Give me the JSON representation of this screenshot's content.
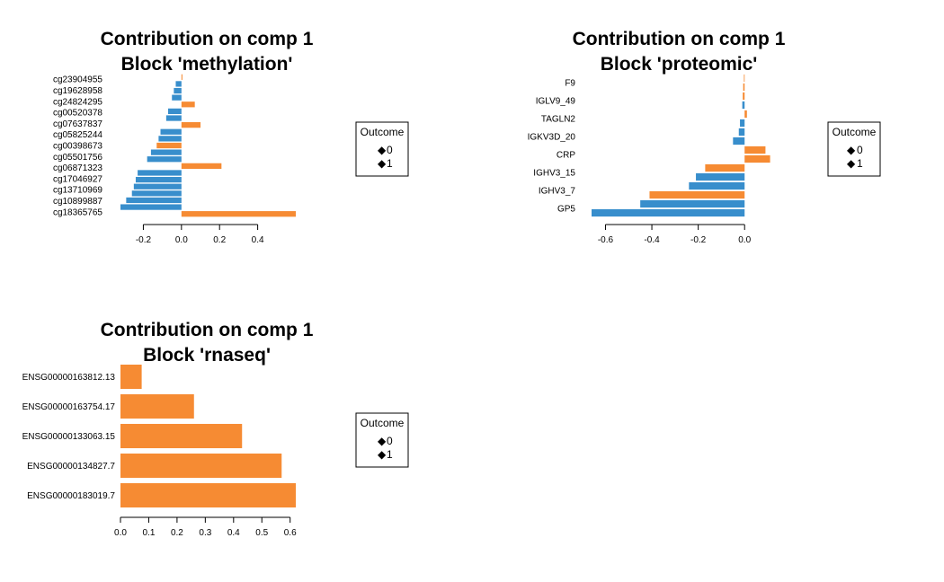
{
  "colors": {
    "0": "#388ECC",
    "1": "#F68B33"
  },
  "legend": {
    "title": "Outcome",
    "items": [
      "0",
      "1"
    ]
  },
  "chart_data": [
    {
      "type": "bar",
      "orientation": "horizontal",
      "title": "Contribution on comp 1",
      "subtitle": "Block 'methylation'",
      "xlim": [
        -0.32,
        0.6
      ],
      "ticks": [
        -0.2,
        0.0,
        0.2,
        0.4
      ],
      "tick_labels": [
        "-0.2",
        "0.0",
        "0.2",
        "0.4"
      ],
      "legend_position": "right",
      "labels": [
        "cg23904955",
        "cg19628958",
        "cg24824295",
        "cg00520378",
        "cg07637837",
        "cg05825244",
        "cg00398673",
        "cg05501756",
        "cg06871323",
        "cg17046927",
        "cg13710969",
        "cg10899887",
        "cg18365765"
      ],
      "bars": [
        {
          "label": "cg23904955",
          "value": 0.005,
          "group": "1"
        },
        {
          "label": "cg19628958",
          "value": -0.03,
          "group": "0"
        },
        {
          "label": "cg24824295",
          "value": -0.04,
          "group": "0"
        },
        {
          "label": "cg24824295",
          "value": -0.05,
          "group": "0"
        },
        {
          "label": "cg00520378",
          "value": 0.07,
          "group": "1"
        },
        {
          "label": "cg07637837",
          "value": -0.07,
          "group": "0"
        },
        {
          "label": "cg07637837",
          "value": -0.08,
          "group": "0"
        },
        {
          "label": "cg05825244",
          "value": 0.1,
          "group": "1"
        },
        {
          "label": "cg00398673",
          "value": -0.11,
          "group": "0"
        },
        {
          "label": "cg00398673",
          "value": -0.12,
          "group": "0"
        },
        {
          "label": "cg05501756",
          "value": -0.13,
          "group": "1"
        },
        {
          "label": "cg05501756",
          "value": -0.16,
          "group": "0"
        },
        {
          "label": "cg06871323",
          "value": -0.18,
          "group": "0"
        },
        {
          "label": "cg06871323",
          "value": 0.21,
          "group": "1"
        },
        {
          "label": "cg17046927",
          "value": -0.23,
          "group": "0"
        },
        {
          "label": "cg17046927",
          "value": -0.24,
          "group": "0"
        },
        {
          "label": "cg13710969",
          "value": -0.25,
          "group": "0"
        },
        {
          "label": "cg13710969",
          "value": -0.26,
          "group": "0"
        },
        {
          "label": "cg10899887",
          "value": -0.29,
          "group": "0"
        },
        {
          "label": "cg10899887",
          "value": -0.32,
          "group": "0"
        },
        {
          "label": "cg18365765",
          "value": 0.6,
          "group": "1"
        }
      ]
    },
    {
      "type": "bar",
      "orientation": "horizontal",
      "title": "Contribution on comp 1",
      "subtitle": "Block 'proteomic'",
      "xlim": [
        -0.66,
        0.1
      ],
      "ticks": [
        -0.6,
        -0.4,
        -0.2,
        0.0
      ],
      "tick_labels": [
        "-0.6",
        "-0.4",
        "-0.2",
        "0.0"
      ],
      "legend_position": "right",
      "labels": [
        "F9",
        "IGLV9_49",
        "TAGLN2",
        "IGKV3D_20",
        "CRP",
        "IGHV3_15",
        "IGHV3_7",
        "GP5"
      ],
      "bars": [
        {
          "label": "F9",
          "value": -0.003,
          "group": "1"
        },
        {
          "label": "F9",
          "value": -0.006,
          "group": "1"
        },
        {
          "label": "IGLV9_49",
          "value": -0.008,
          "group": "1"
        },
        {
          "label": "IGLV9_49",
          "value": -0.01,
          "group": "0"
        },
        {
          "label": "TAGLN2",
          "value": 0.01,
          "group": "1"
        },
        {
          "label": "TAGLN2",
          "value": -0.02,
          "group": "0"
        },
        {
          "label": "IGKV3D_20",
          "value": -0.025,
          "group": "0"
        },
        {
          "label": "IGKV3D_20",
          "value": -0.05,
          "group": "0"
        },
        {
          "label": "CRP",
          "value": 0.09,
          "group": "1"
        },
        {
          "label": "CRP",
          "value": 0.11,
          "group": "1"
        },
        {
          "label": "IGHV3_15",
          "value": -0.17,
          "group": "1"
        },
        {
          "label": "IGHV3_15",
          "value": -0.21,
          "group": "0"
        },
        {
          "label": "IGHV3_7",
          "value": -0.24,
          "group": "0"
        },
        {
          "label": "IGHV3_7",
          "value": -0.41,
          "group": "1"
        },
        {
          "label": "GP5",
          "value": -0.45,
          "group": "0"
        },
        {
          "label": "GP5",
          "value": -0.66,
          "group": "0"
        }
      ]
    },
    {
      "type": "bar",
      "orientation": "horizontal",
      "title": "Contribution on comp 1",
      "subtitle": "Block 'rnaseq'",
      "xlim": [
        0,
        0.62
      ],
      "ticks": [
        0.0,
        0.1,
        0.2,
        0.3,
        0.4,
        0.5,
        0.6
      ],
      "tick_labels": [
        "0.0",
        "0.1",
        "0.2",
        "0.3",
        "0.4",
        "0.5",
        "0.6"
      ],
      "legend_position": "right",
      "labels": [
        "ENSG00000163812.13",
        "ENSG00000163754.17",
        "ENSG00000133063.15",
        "ENSG00000134827.7",
        "ENSG00000183019.7"
      ],
      "bars": [
        {
          "label": "ENSG00000163812.13",
          "value": 0.075,
          "group": "1"
        },
        {
          "label": "ENSG00000163754.17",
          "value": 0.26,
          "group": "1"
        },
        {
          "label": "ENSG00000133063.15",
          "value": 0.43,
          "group": "1"
        },
        {
          "label": "ENSG00000134827.7",
          "value": 0.57,
          "group": "1"
        },
        {
          "label": "ENSG00000183019.7",
          "value": 0.62,
          "group": "1"
        }
      ]
    }
  ]
}
